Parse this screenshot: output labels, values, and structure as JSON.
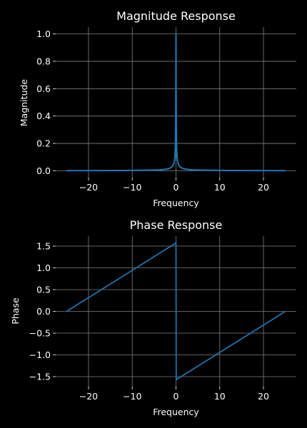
{
  "chart_data": [
    {
      "type": "line",
      "title": "Magnitude Response",
      "xlabel": "Frequency",
      "ylabel": "Magnitude",
      "xlim": [
        -27.5,
        27.5
      ],
      "ylim": [
        -0.05,
        1.05
      ],
      "xticks": [
        -20,
        -10,
        0,
        10,
        20
      ],
      "xtick_labels": [
        "−20",
        "−10",
        "0",
        "10",
        "20"
      ],
      "yticks": [
        0.0,
        0.2,
        0.4,
        0.6,
        0.8,
        1.0
      ],
      "ytick_labels": [
        "0.0",
        "0.2",
        "0.4",
        "0.6",
        "0.8",
        "1.0"
      ],
      "grid": true,
      "color": "#1f77b4",
      "series": [
        {
          "x": [
            -25,
            -20,
            -15,
            -10,
            -6,
            -4,
            -3,
            -2,
            -1.5,
            -1,
            -0.7,
            -0.5,
            -0.35,
            -0.25,
            -0.18,
            -0.12,
            -0.08,
            -0.05,
            -0.03,
            -0.015,
            0,
            0.015,
            0.03,
            0.05,
            0.08,
            0.12,
            0.18,
            0.25,
            0.35,
            0.5,
            0.7,
            1,
            1.5,
            2,
            3,
            4,
            6,
            10,
            15,
            20,
            25
          ],
          "y": [
            0.001,
            0.0013,
            0.0018,
            0.0027,
            0.0045,
            0.0066,
            0.0088,
            0.013,
            0.018,
            0.027,
            0.038,
            0.053,
            0.076,
            0.106,
            0.146,
            0.217,
            0.312,
            0.462,
            0.64,
            0.86,
            1.0,
            0.86,
            0.64,
            0.462,
            0.312,
            0.217,
            0.146,
            0.106,
            0.076,
            0.053,
            0.038,
            0.027,
            0.018,
            0.013,
            0.0088,
            0.0066,
            0.0045,
            0.0027,
            0.0018,
            0.0013,
            0.001
          ]
        }
      ]
    },
    {
      "type": "line",
      "title": "Phase Response",
      "xlabel": "Frequency",
      "ylabel": "Phase",
      "xlim": [
        -27.5,
        27.5
      ],
      "ylim": [
        -1.73,
        1.73
      ],
      "xticks": [
        -20,
        -10,
        0,
        10,
        20
      ],
      "xtick_labels": [
        "−20",
        "−10",
        "0",
        "10",
        "20"
      ],
      "yticks": [
        -1.5,
        -1.0,
        -0.5,
        0.0,
        0.5,
        1.0,
        1.5
      ],
      "ytick_labels": [
        "−1.5",
        "−1.0",
        "−0.5",
        "0.0",
        "0.5",
        "1.0",
        "1.5"
      ],
      "grid": true,
      "color": "#1f77b4",
      "series": [
        {
          "x": [
            -25,
            -0.05,
            0,
            0.05,
            25
          ],
          "y": [
            0.0,
            1.57,
            1.57,
            -1.57,
            0.0
          ]
        }
      ]
    }
  ]
}
